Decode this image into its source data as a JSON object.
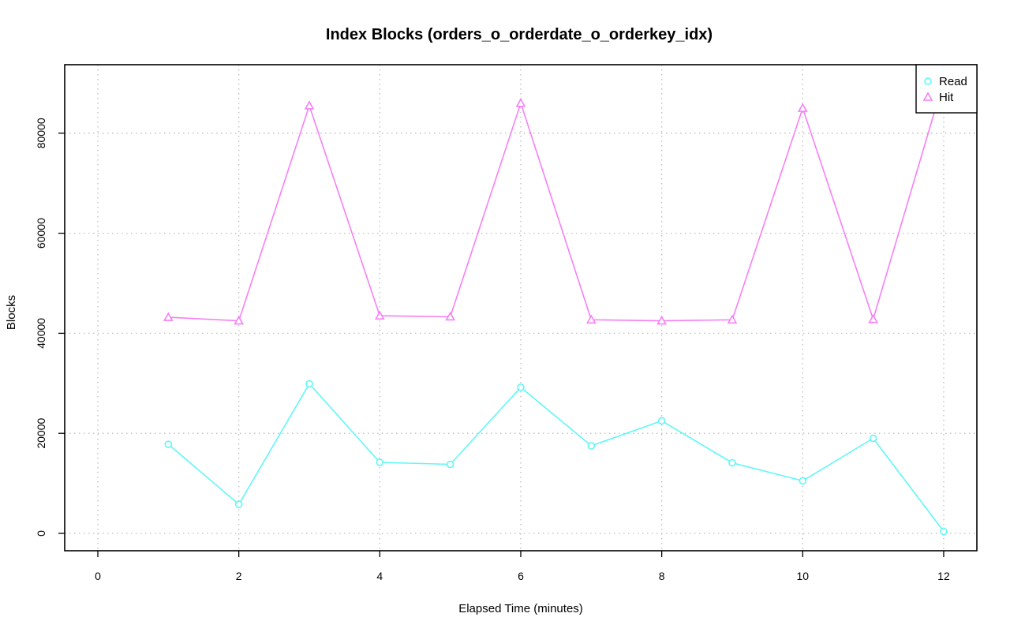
{
  "chart_data": {
    "type": "line",
    "title": "Index Blocks (orders_o_orderdate_o_orderkey_idx)",
    "xlabel": "Elapsed Time (minutes)",
    "ylabel": "Blocks",
    "xlim": [
      0,
      12
    ],
    "ylim": [
      0,
      90000
    ],
    "xticks": [
      0,
      2,
      4,
      6,
      8,
      10,
      12
    ],
    "yticks": [
      0,
      20000,
      40000,
      60000,
      80000
    ],
    "grid": true,
    "legend_position": "top-right",
    "x": [
      1,
      2,
      3,
      4,
      5,
      6,
      7,
      8,
      9,
      10,
      11,
      12
    ],
    "series": [
      {
        "name": "Read",
        "marker": "circle",
        "color": "#5ff7f7",
        "values": [
          17800,
          5800,
          29900,
          14200,
          13800,
          29200,
          17500,
          22500,
          14100,
          10500,
          19000,
          400
        ]
      },
      {
        "name": "Hit",
        "marker": "triangle",
        "color": "#f77ff7",
        "values": [
          43200,
          42500,
          85500,
          43500,
          43300,
          86000,
          42700,
          42500,
          42700,
          85000,
          42800,
          90500
        ]
      }
    ]
  }
}
